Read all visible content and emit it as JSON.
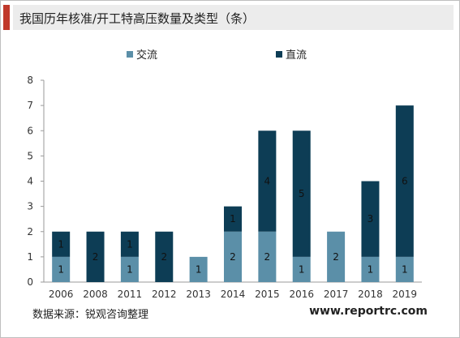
{
  "header": {
    "title": "我国历年核准/开工特高压数量及类型（条）"
  },
  "footer": {
    "source": "数据来源：锐观咨询整理",
    "website": "www.reportrc.com"
  },
  "chart_data": {
    "type": "bar",
    "stacked": true,
    "title": "我国历年核准/开工特高压数量及类型（条）",
    "categories": [
      "2006",
      "2008",
      "2011",
      "2012",
      "2013",
      "2014",
      "2015",
      "2016",
      "2017",
      "2018",
      "2019"
    ],
    "series": [
      {
        "name": "交流",
        "color": "#5b8fa8",
        "values": [
          1,
          0,
          1,
          0,
          1,
          2,
          2,
          1,
          2,
          1,
          1
        ]
      },
      {
        "name": "直流",
        "color": "#0d3d55",
        "values": [
          1,
          2,
          1,
          2,
          0,
          1,
          4,
          5,
          0,
          3,
          6
        ]
      }
    ],
    "ylim": [
      0,
      8
    ],
    "yticks": [
      0,
      1,
      2,
      3,
      4,
      5,
      6,
      7,
      8
    ],
    "legend_position": "top",
    "grid": false
  }
}
